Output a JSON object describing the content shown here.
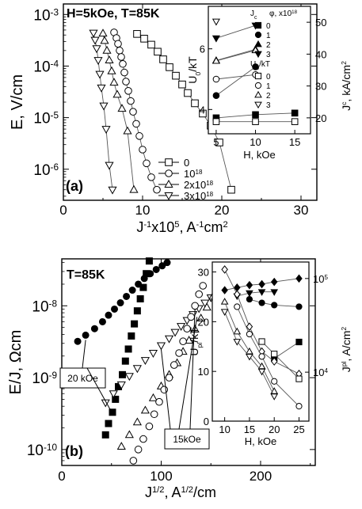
{
  "chart_data": [
    {
      "panel": "a",
      "type": "scatter",
      "panel_label": "(a)",
      "annotation": "H=5kOe, T=85K",
      "xlabel_parts": [
        "J",
        "-1",
        "x10",
        "5",
        ", A",
        "-1",
        "cm",
        "2"
      ],
      "ylabel": "E, V/cm",
      "xlim": [
        0,
        32
      ],
      "ylim": [
        2.5e-07,
        0.0016
      ],
      "yscale": "log",
      "x_ticks": [
        "0",
        "10",
        "20",
        "30"
      ],
      "y_ticks": [
        {
          "base": "10",
          "exp": "-6",
          "value": 1e-06
        },
        {
          "base": "10",
          "exp": "-5",
          "value": 1e-05
        },
        {
          "base": "10",
          "exp": "-4",
          "value": 0.0001
        },
        {
          "base": "10",
          "exp": "-3",
          "value": 0.001
        }
      ],
      "legend_placement": "bottom-right",
      "legend": [
        {
          "label": "0",
          "exp": ""
        },
        {
          "label": "10",
          "exp": "18"
        },
        {
          "label": "2x10",
          "exp": "18"
        },
        {
          "label": "3x10",
          "exp": "18"
        }
      ],
      "series": [
        {
          "symbol": "square-open",
          "x": [
            9.3,
            10.2,
            11.1,
            11.9,
            12.6,
            13.4,
            14.2,
            15.0,
            15.7,
            16.6,
            17.6,
            18.6,
            19.7,
            21.2
          ],
          "y": [
            0.00042,
            0.00034,
            0.00026,
            0.00019,
            0.000135,
            9.5e-05,
            6.5e-05,
            4.4e-05,
            3e-05,
            1.9e-05,
            1.2e-05,
            7e-06,
            3.3e-06,
            4e-07
          ]
        },
        {
          "symbol": "circle-open",
          "x": [
            6.4,
            6.7,
            6.9,
            7.1,
            7.3,
            7.5,
            7.7,
            7.9,
            8.2,
            8.5,
            8.8,
            9.2,
            9.6,
            10.0,
            10.5,
            11.1,
            11.8
          ],
          "y": [
            0.00045,
            0.00035,
            0.00027,
            0.0002,
            0.00015,
            0.00011,
            7.5e-05,
            5e-05,
            3.3e-05,
            2.1e-05,
            1.3e-05,
            7.6e-06,
            4.4e-06,
            2.4e-06,
            1.3e-06,
            7e-07,
            4e-07
          ]
        },
        {
          "symbol": "triangle-up-open",
          "x": [
            5.0,
            5.2,
            5.5,
            5.8,
            6.1,
            6.4,
            6.8,
            7.4,
            8.1,
            8.9
          ],
          "y": [
            0.00043,
            0.00031,
            0.0002,
            0.00013,
            8e-05,
            4.8e-05,
            2.8e-05,
            1.5e-05,
            5.5e-06,
            4e-07
          ]
        },
        {
          "symbol": "triangle-down-open",
          "x": [
            3.8,
            4.0,
            4.2,
            4.4,
            4.6,
            4.8,
            5.1,
            5.4,
            5.8,
            6.2
          ],
          "y": [
            0.00044,
            0.00032,
            0.00022,
            0.00013,
            7e-05,
            3.8e-05,
            1.7e-05,
            6e-06,
            1.2e-06,
            4e-07
          ]
        }
      ],
      "inset": {
        "xlabel": "H, kOe",
        "ylabel_left_parts": [
          "U",
          "0",
          "/kT"
        ],
        "ylabel_right_parts": [
          "J",
          "c",
          ", kA/cm",
          "2"
        ],
        "xlim": [
          4,
          17
        ],
        "ylim_left": [
          3.2,
          7.4
        ],
        "ylim_right": [
          15,
          55
        ],
        "x_ticks": [
          "5",
          "10",
          "15"
        ],
        "y_ticks_left": [
          "4",
          "6"
        ],
        "y_ticks_right": [
          "20",
          "30",
          "40",
          "50"
        ],
        "legend_placement": "top-right",
        "legend_title_jc": "J",
        "legend_title_jc_sub": "c",
        "legend_title_phi": "φ, x10",
        "legend_title_phi_exp": "18",
        "legend_title_u": "U",
        "legend_title_u_sub": "0",
        "legend_title_u_rest": "/kT",
        "legend_labels": [
          "0",
          "1",
          "2",
          "3"
        ],
        "x": [
          5,
          10,
          15
        ],
        "jc_series": [
          {
            "symbol": "square-filled",
            "axis": "right",
            "y": [
              20,
              21,
              21.5
            ]
          },
          {
            "symbol": "circle-filled",
            "axis": "right",
            "y": [
              27,
              36,
              null
            ]
          },
          {
            "symbol": "triangle-up-filled",
            "axis": "right",
            "y": [
              38,
              41.5,
              null
            ]
          },
          {
            "symbol": "triangle-down-filled",
            "axis": "right",
            "y": [
              45,
              49,
              null
            ]
          }
        ],
        "u0_series": [
          {
            "symbol": "square-open",
            "axis": "left",
            "y": [
              3.6,
              3.6,
              3.6
            ]
          },
          {
            "symbol": "circle-open",
            "axis": "left",
            "y": [
              5.0,
              5.15,
              null
            ]
          },
          {
            "symbol": "triangle-up-open",
            "axis": "left",
            "y": [
              5.6,
              5.95,
              null
            ]
          },
          {
            "symbol": "triangle-down-open",
            "axis": "left",
            "y": [
              6.9,
              null,
              null
            ]
          }
        ]
      }
    },
    {
      "panel": "b",
      "type": "scatter",
      "panel_label": "(b)",
      "annotation": "T=85K",
      "xlabel_parts": [
        "J",
        "1/2",
        ", A",
        "1/2",
        "/cm"
      ],
      "ylabel": "E/J, Ωcm",
      "xlim": [
        0,
        255
      ],
      "ylim": [
        6e-11,
        4.5e-08
      ],
      "yscale": "log",
      "x_ticks": [
        "0",
        "100",
        "200"
      ],
      "y_ticks": [
        {
          "base": "10",
          "exp": "-10",
          "value": 1e-10
        },
        {
          "base": "10",
          "exp": "-9",
          "value": 1e-09
        },
        {
          "base": "10",
          "exp": "-8",
          "value": 1e-08
        }
      ],
      "callouts": [
        "20 kOe",
        "15kOe"
      ],
      "series": [
        {
          "symbol": "circle-filled",
          "x": [
            16,
            24,
            33,
            41,
            47,
            53,
            59,
            65,
            71,
            77,
            83,
            89,
            95,
            101,
            106
          ],
          "y": [
            3.2e-09,
            3.9e-09,
            4.8e-09,
            6e-09,
            7.4e-09,
            9e-09,
            1.1e-08,
            1.35e-08,
            1.65e-08,
            2e-08,
            2.4e-08,
            2.8e-08,
            3.2e-08,
            3.6e-08,
            4e-08
          ]
        },
        {
          "symbol": "square-filled",
          "x": [
            44,
            47,
            51,
            54,
            57,
            61,
            64,
            67,
            70,
            73,
            76,
            79,
            82,
            85,
            88
          ],
          "y": [
            1.6e-10,
            2.3e-10,
            3.3e-10,
            5e-10,
            7.5e-10,
            1.1e-09,
            1.7e-09,
            2.5e-09,
            3.8e-09,
            5.6e-09,
            8.5e-09,
            1.25e-08,
            1.8e-08,
            2.8e-08,
            4.2e-08
          ]
        },
        {
          "symbol": "triangle-down-open",
          "x": [
            44,
            52,
            60,
            68,
            76,
            84,
            92,
            100,
            108,
            114,
            120,
            126,
            132,
            138,
            144,
            150
          ],
          "y": [
            4.5e-10,
            6e-10,
            8e-10,
            1.05e-09,
            1.35e-09,
            1.75e-09,
            2.2e-09,
            2.8e-09,
            3.5e-09,
            4.3e-09,
            5.2e-09,
            6.3e-09,
            7.6e-09,
            9.2e-09,
            1.1e-08,
            1.3e-08
          ]
        },
        {
          "symbol": "triangle-up-open",
          "x": [
            60,
            68,
            76,
            84,
            92,
            100,
            108,
            116,
            122,
            128,
            134,
            140,
            146,
            152
          ],
          "y": [
            1.1e-10,
            1.6e-10,
            2.4e-10,
            3.5e-10,
            5.2e-10,
            7.6e-10,
            1.1e-09,
            1.6e-09,
            2.3e-09,
            3.3e-09,
            4.7e-09,
            6.7e-09,
            9.5e-09,
            1.35e-08
          ]
        },
        {
          "symbol": "circle-open",
          "x": [
            72,
            77,
            82,
            88,
            93,
            98,
            103,
            108,
            113,
            118,
            122,
            126,
            130,
            134,
            138,
            142
          ],
          "y": [
            7e-11,
            1e-10,
            1.4e-10,
            2.1e-10,
            3.1e-10,
            4.6e-10,
            6.8e-10,
            1e-09,
            1.5e-09,
            2.2e-09,
            3.2e-09,
            4.8e-09,
            7e-09,
            1e-08,
            1.45e-08,
            1.9e-08
          ]
        }
      ],
      "inset": {
        "xlabel": "H, kOe",
        "ylabel_left_parts": [
          "U",
          "pl",
          "/kT"
        ],
        "ylabel_right_parts": [
          "J",
          "pl",
          ", A/cm",
          "2"
        ],
        "xlim": [
          7.5,
          27
        ],
        "ylim_left": [
          0,
          32
        ],
        "right_log": true,
        "ylim_right": [
          3000,
          150000
        ],
        "x_ticks": [
          "10",
          "15",
          "20",
          "25"
        ],
        "y_ticks_left": [
          "0",
          "10",
          "20",
          "30"
        ],
        "y_ticks_right": [
          {
            "base": "10",
            "exp": "4",
            "value": 10000
          },
          {
            "base": "10",
            "exp": "5",
            "value": 100000
          }
        ],
        "x": [
          10,
          12.5,
          15,
          17.5,
          20,
          25
        ],
        "jpl_series": [
          {
            "symbol": "diamond-filled",
            "axis": "right",
            "y": [
              75000,
              80000,
              85000,
              87000,
              92000,
              100000
            ]
          },
          {
            "symbol": "triangle-down-filled",
            "axis": "right",
            "y": [
              null,
              65000,
              70000,
              72000,
              72000,
              null
            ]
          },
          {
            "symbol": "circle-filled",
            "axis": "right",
            "y": [
              null,
              null,
              60000,
              55000,
              52000,
              50000
            ]
          },
          {
            "symbol": "square-filled",
            "axis": "right",
            "y": [
              null,
              null,
              null,
              null,
              14000,
              21000
            ]
          }
        ],
        "upl_series": [
          {
            "symbol": "diamond-open",
            "axis": "left",
            "y": [
              30.5,
              25.5,
              19,
              14,
              12,
              9.5
            ]
          },
          {
            "symbol": "circle-open",
            "axis": "left",
            "y": [
              null,
              23,
              17.5,
              13,
              8,
              3
            ]
          },
          {
            "symbol": "square-open",
            "axis": "left",
            "y": [
              null,
              null,
              null,
              16,
              13.5,
              8.5
            ]
          },
          {
            "symbol": "triangle-up-open",
            "axis": "left",
            "y": [
              24,
              18,
              14,
              11,
              6,
              null
            ]
          },
          {
            "symbol": "triangle-down-open",
            "axis": "left",
            "y": [
              22,
              16,
              13,
              10,
              5,
              null
            ]
          }
        ]
      }
    }
  ]
}
